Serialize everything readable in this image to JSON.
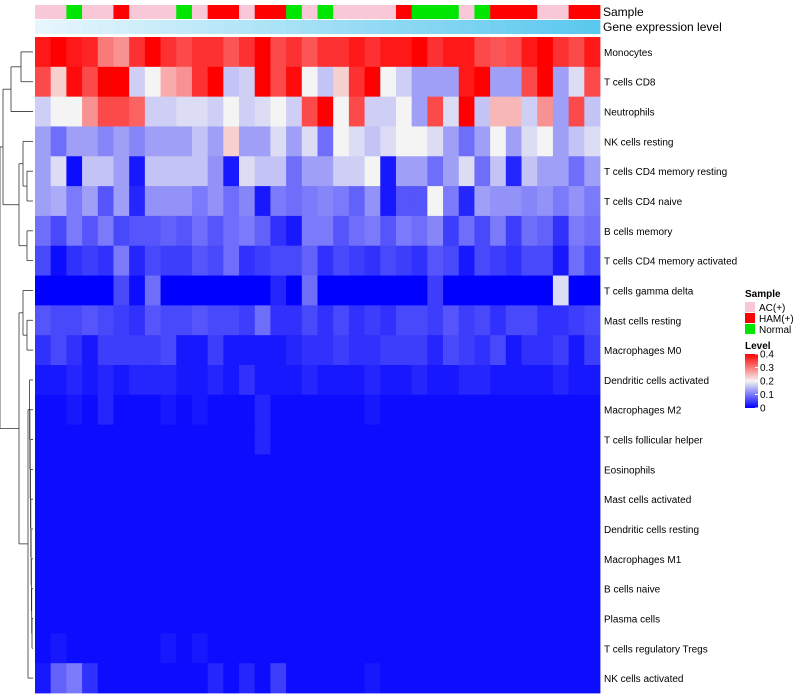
{
  "chart_data": {
    "type": "heatmap",
    "title": "",
    "annotation_rows": [
      "Sample",
      "Gene expression level"
    ],
    "rows": [
      "Monocytes",
      "T cells CD8",
      "Neutrophils",
      "NK cells resting",
      "T cells CD4 memory resting",
      "T cells CD4 naive",
      "B cells memory",
      "T cells CD4 memory activated",
      "T cells gamma delta",
      "Mast cells resting",
      "Macrophages M0",
      "Dendritic cells activated",
      "Macrophages M2",
      "T cells follicular helper",
      "Eosinophils",
      "Mast cells activated",
      "Dendritic cells resting",
      "Macrophages M1",
      "B cells naive",
      "Plasma cells",
      "T cells regulatory  Tregs",
      "NK cells activated"
    ],
    "sample_groups": [
      "AC",
      "AC",
      "NORM",
      "AC",
      "AC",
      "HAM",
      "AC",
      "AC",
      "AC",
      "NORM",
      "AC",
      "HAM",
      "HAM",
      "AC",
      "HAM",
      "HAM",
      "NORM",
      "AC",
      "NORM",
      "AC",
      "AC",
      "AC",
      "AC",
      "HAM",
      "NORM",
      "NORM",
      "NORM",
      "AC",
      "NORM",
      "HAM",
      "HAM",
      "HAM",
      "AC",
      "AC",
      "HAM",
      "HAM"
    ],
    "gene_expression_gradient": [
      "#e6f6fc",
      "#5bc8ee"
    ],
    "values": [
      [
        0.38,
        0.4,
        0.38,
        0.37,
        0.3,
        0.28,
        0.36,
        0.4,
        0.36,
        0.34,
        0.36,
        0.36,
        0.33,
        0.36,
        0.4,
        0.34,
        0.36,
        0.33,
        0.36,
        0.36,
        0.38,
        0.36,
        0.38,
        0.38,
        0.4,
        0.36,
        0.38,
        0.38,
        0.34,
        0.33,
        0.34,
        0.38,
        0.4,
        0.36,
        0.34,
        0.38
      ],
      [
        0.34,
        0.23,
        0.39,
        0.34,
        0.4,
        0.4,
        0.17,
        0.2,
        0.26,
        0.28,
        0.36,
        0.4,
        0.16,
        0.17,
        0.4,
        0.34,
        0.39,
        0.2,
        0.16,
        0.23,
        0.36,
        0.4,
        0.2,
        0.17,
        0.13,
        0.13,
        0.13,
        0.38,
        0.4,
        0.13,
        0.13,
        0.34,
        0.4,
        0.13,
        0.18,
        0.34
      ],
      [
        0.17,
        0.2,
        0.2,
        0.28,
        0.34,
        0.34,
        0.32,
        0.17,
        0.17,
        0.18,
        0.18,
        0.17,
        0.2,
        0.17,
        0.18,
        0.2,
        0.17,
        0.34,
        0.4,
        0.2,
        0.34,
        0.17,
        0.17,
        0.2,
        0.13,
        0.34,
        0.18,
        0.4,
        0.16,
        0.25,
        0.25,
        0.17,
        0.28,
        0.13,
        0.34,
        0.16
      ],
      [
        0.13,
        0.09,
        0.13,
        0.13,
        0.11,
        0.13,
        0.11,
        0.13,
        0.13,
        0.13,
        0.16,
        0.13,
        0.23,
        0.13,
        0.13,
        0.18,
        0.13,
        0.18,
        0.09,
        0.2,
        0.18,
        0.16,
        0.18,
        0.2,
        0.2,
        0.18,
        0.13,
        0.09,
        0.13,
        0.2,
        0.13,
        0.18,
        0.2,
        0.13,
        0.16,
        0.18
      ],
      [
        0.13,
        0.18,
        0.01,
        0.16,
        0.16,
        0.13,
        0.02,
        0.16,
        0.16,
        0.16,
        0.16,
        0.12,
        0.02,
        0.18,
        0.16,
        0.16,
        0.09,
        0.13,
        0.13,
        0.17,
        0.17,
        0.2,
        0.02,
        0.13,
        0.13,
        0.09,
        0.13,
        0.18,
        0.09,
        0.16,
        0.03,
        0.16,
        0.13,
        0.13,
        0.09,
        0.13
      ],
      [
        0.13,
        0.14,
        0.1,
        0.13,
        0.07,
        0.13,
        0.03,
        0.12,
        0.12,
        0.12,
        0.1,
        0.12,
        0.09,
        0.11,
        0.02,
        0.1,
        0.09,
        0.1,
        0.11,
        0.1,
        0.08,
        0.12,
        0.02,
        0.07,
        0.07,
        0.2,
        0.1,
        0.03,
        0.13,
        0.12,
        0.12,
        0.11,
        0.12,
        0.1,
        0.12,
        0.1
      ],
      [
        0.09,
        0.06,
        0.1,
        0.07,
        0.1,
        0.06,
        0.07,
        0.07,
        0.08,
        0.07,
        0.09,
        0.07,
        0.09,
        0.1,
        0.08,
        0.04,
        0.02,
        0.1,
        0.1,
        0.07,
        0.09,
        0.1,
        0.07,
        0.1,
        0.09,
        0.11,
        0.05,
        0.09,
        0.06,
        0.1,
        0.05,
        0.09,
        0.08,
        0.04,
        0.1,
        0.09
      ],
      [
        0.06,
        0.01,
        0.04,
        0.05,
        0.04,
        0.1,
        0.03,
        0.06,
        0.05,
        0.05,
        0.07,
        0.06,
        0.09,
        0.04,
        0.05,
        0.06,
        0.06,
        0.08,
        0.04,
        0.06,
        0.05,
        0.04,
        0.06,
        0.05,
        0.04,
        0.07,
        0.06,
        0.02,
        0.06,
        0.05,
        0.04,
        0.06,
        0.06,
        0.02,
        0.09,
        0.06
      ],
      [
        0.0,
        0.0,
        0.0,
        0.0,
        0.0,
        0.06,
        0.01,
        0.09,
        0.0,
        0.0,
        0.0,
        0.0,
        0.0,
        0.0,
        0.0,
        0.03,
        0.0,
        0.09,
        0.0,
        0.0,
        0.0,
        0.0,
        0.0,
        0.0,
        0.0,
        0.05,
        0.0,
        0.0,
        0.0,
        0.0,
        0.0,
        0.0,
        0.0,
        0.18,
        0.0,
        0.0
      ],
      [
        0.07,
        0.06,
        0.06,
        0.07,
        0.06,
        0.05,
        0.04,
        0.07,
        0.06,
        0.06,
        0.07,
        0.06,
        0.06,
        0.05,
        0.09,
        0.04,
        0.04,
        0.06,
        0.04,
        0.06,
        0.04,
        0.05,
        0.04,
        0.06,
        0.06,
        0.05,
        0.07,
        0.05,
        0.06,
        0.04,
        0.06,
        0.06,
        0.04,
        0.04,
        0.05,
        0.06
      ],
      [
        0.04,
        0.06,
        0.04,
        0.02,
        0.05,
        0.05,
        0.05,
        0.05,
        0.06,
        0.02,
        0.02,
        0.05,
        0.02,
        0.02,
        0.02,
        0.02,
        0.03,
        0.04,
        0.04,
        0.05,
        0.04,
        0.04,
        0.05,
        0.05,
        0.05,
        0.03,
        0.06,
        0.05,
        0.04,
        0.06,
        0.02,
        0.04,
        0.04,
        0.05,
        0.02,
        0.05
      ],
      [
        0.02,
        0.02,
        0.03,
        0.02,
        0.03,
        0.02,
        0.03,
        0.03,
        0.03,
        0.02,
        0.02,
        0.03,
        0.02,
        0.04,
        0.02,
        0.02,
        0.02,
        0.03,
        0.02,
        0.02,
        0.02,
        0.03,
        0.02,
        0.02,
        0.03,
        0.02,
        0.02,
        0.03,
        0.03,
        0.02,
        0.02,
        0.02,
        0.02,
        0.03,
        0.02,
        0.02
      ],
      [
        0.01,
        0.01,
        0.02,
        0.01,
        0.03,
        0.01,
        0.01,
        0.01,
        0.02,
        0.01,
        0.02,
        0.01,
        0.01,
        0.01,
        0.03,
        0.01,
        0.01,
        0.01,
        0.01,
        0.01,
        0.01,
        0.02,
        0.01,
        0.01,
        0.01,
        0.01,
        0.01,
        0.01,
        0.01,
        0.01,
        0.01,
        0.01,
        0.01,
        0.01,
        0.01,
        0.01
      ],
      [
        0.01,
        0.01,
        0.01,
        0.01,
        0.01,
        0.01,
        0.01,
        0.01,
        0.01,
        0.01,
        0.01,
        0.01,
        0.01,
        0.01,
        0.03,
        0.01,
        0.01,
        0.01,
        0.01,
        0.01,
        0.01,
        0.01,
        0.01,
        0.01,
        0.01,
        0.01,
        0.01,
        0.01,
        0.01,
        0.01,
        0.01,
        0.01,
        0.01,
        0.01,
        0.01,
        0.01
      ],
      [
        0.01,
        0.01,
        0.01,
        0.01,
        0.01,
        0.01,
        0.01,
        0.01,
        0.01,
        0.01,
        0.01,
        0.01,
        0.01,
        0.01,
        0.01,
        0.01,
        0.01,
        0.01,
        0.01,
        0.01,
        0.01,
        0.01,
        0.01,
        0.01,
        0.01,
        0.01,
        0.01,
        0.01,
        0.01,
        0.01,
        0.01,
        0.01,
        0.01,
        0.01,
        0.01,
        0.01
      ],
      [
        0.01,
        0.01,
        0.01,
        0.01,
        0.01,
        0.01,
        0.01,
        0.01,
        0.01,
        0.01,
        0.01,
        0.01,
        0.01,
        0.01,
        0.01,
        0.01,
        0.01,
        0.01,
        0.01,
        0.01,
        0.01,
        0.01,
        0.01,
        0.01,
        0.01,
        0.01,
        0.01,
        0.01,
        0.01,
        0.01,
        0.01,
        0.01,
        0.01,
        0.01,
        0.01,
        0.01
      ],
      [
        0.01,
        0.01,
        0.01,
        0.01,
        0.01,
        0.01,
        0.01,
        0.01,
        0.01,
        0.01,
        0.01,
        0.01,
        0.01,
        0.01,
        0.01,
        0.01,
        0.01,
        0.01,
        0.01,
        0.01,
        0.01,
        0.01,
        0.01,
        0.01,
        0.01,
        0.01,
        0.01,
        0.01,
        0.01,
        0.01,
        0.01,
        0.01,
        0.01,
        0.01,
        0.01,
        0.01
      ],
      [
        0.01,
        0.01,
        0.01,
        0.01,
        0.01,
        0.01,
        0.01,
        0.01,
        0.01,
        0.01,
        0.01,
        0.01,
        0.01,
        0.01,
        0.01,
        0.01,
        0.01,
        0.01,
        0.01,
        0.01,
        0.01,
        0.01,
        0.01,
        0.01,
        0.01,
        0.01,
        0.01,
        0.01,
        0.01,
        0.01,
        0.01,
        0.01,
        0.01,
        0.01,
        0.01,
        0.01
      ],
      [
        0.01,
        0.01,
        0.01,
        0.01,
        0.01,
        0.01,
        0.01,
        0.01,
        0.01,
        0.01,
        0.01,
        0.01,
        0.01,
        0.01,
        0.01,
        0.01,
        0.01,
        0.01,
        0.01,
        0.01,
        0.01,
        0.01,
        0.01,
        0.01,
        0.01,
        0.01,
        0.01,
        0.01,
        0.01,
        0.01,
        0.01,
        0.01,
        0.01,
        0.01,
        0.01,
        0.01
      ],
      [
        0.01,
        0.01,
        0.01,
        0.01,
        0.01,
        0.01,
        0.01,
        0.01,
        0.01,
        0.01,
        0.01,
        0.01,
        0.01,
        0.01,
        0.01,
        0.01,
        0.01,
        0.01,
        0.01,
        0.01,
        0.01,
        0.01,
        0.01,
        0.01,
        0.01,
        0.01,
        0.01,
        0.01,
        0.01,
        0.01,
        0.01,
        0.01,
        0.01,
        0.01,
        0.01,
        0.01
      ],
      [
        0.01,
        0.02,
        0.01,
        0.01,
        0.01,
        0.01,
        0.01,
        0.01,
        0.02,
        0.01,
        0.02,
        0.01,
        0.01,
        0.01,
        0.01,
        0.01,
        0.01,
        0.01,
        0.01,
        0.01,
        0.01,
        0.01,
        0.01,
        0.01,
        0.01,
        0.01,
        0.01,
        0.01,
        0.01,
        0.01,
        0.01,
        0.01,
        0.01,
        0.01,
        0.01,
        0.01
      ],
      [
        0.02,
        0.08,
        0.1,
        0.04,
        0.01,
        0.01,
        0.01,
        0.01,
        0.01,
        0.01,
        0.01,
        0.03,
        0.01,
        0.03,
        0.01,
        0.05,
        0.01,
        0.01,
        0.01,
        0.01,
        0.01,
        0.02,
        0.01,
        0.01,
        0.01,
        0.01,
        0.01,
        0.01,
        0.01,
        0.01,
        0.01,
        0.01,
        0.01,
        0.01,
        0.01,
        0.01
      ]
    ],
    "color_scale": {
      "min": 0,
      "mid": 0.2,
      "max": 0.4,
      "colors": [
        "#0000ff",
        "#f4f4f4",
        "#ff0000"
      ]
    },
    "legend": {
      "position": "right",
      "sample_title": "Sample",
      "sample_items": [
        {
          "key": "AC",
          "label": "AC(+)",
          "color": "#f8c8d8"
        },
        {
          "key": "HAM",
          "label": "HAM(+)",
          "color": "#ff0000"
        },
        {
          "key": "NORM",
          "label": "Normal",
          "color": "#00e600"
        }
      ],
      "level_title": "Level",
      "level_ticks": [
        "0.4",
        "0.3",
        "0.2",
        "0.1",
        "0"
      ]
    }
  }
}
